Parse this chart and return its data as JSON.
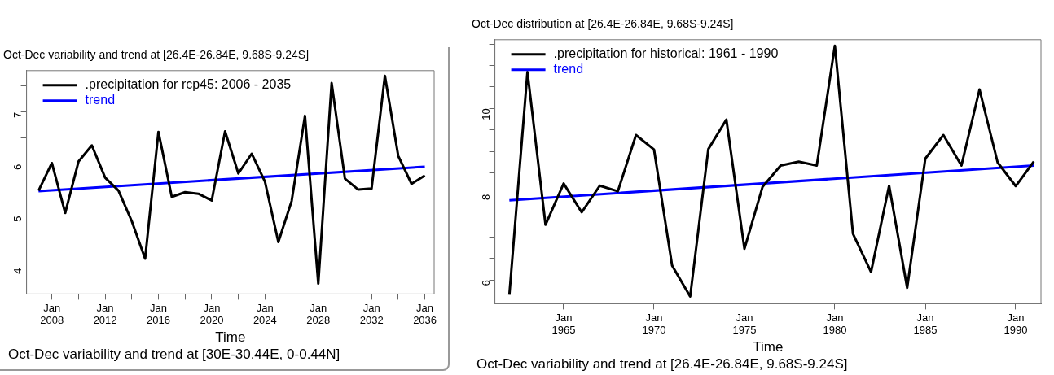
{
  "chart_data": [
    {
      "type": "line",
      "title": "Oct-Dec variability and trend at [26.4E-26.84E, 9.68S-9.24S]",
      "xlabel": "Time",
      "x": [
        "2007-01",
        "2008-01",
        "2009-01",
        "2010-01",
        "2011-01",
        "2012-01",
        "2013-01",
        "2014-01",
        "2015-01",
        "2016-01",
        "2017-01",
        "2018-01",
        "2019-01",
        "2020-01",
        "2021-01",
        "2022-01",
        "2023-01",
        "2024-01",
        "2025-01",
        "2026-01",
        "2027-01",
        "2028-01",
        "2029-01",
        "2030-01",
        "2031-01",
        "2032-01",
        "2033-01",
        "2034-01",
        "2035-01",
        "2036-01"
      ],
      "series": [
        {
          "name": ".precipitation for rcp45: 2006 - 2035",
          "color": "#000000",
          "values": [
            5.49,
            6.02,
            5.06,
            6.05,
            6.36,
            5.74,
            5.49,
            4.9,
            4.18,
            6.62,
            5.37,
            5.46,
            5.43,
            5.3,
            6.63,
            5.82,
            6.2,
            5.66,
            4.5,
            5.29,
            6.93,
            3.7,
            7.56,
            5.72,
            5.51,
            5.53,
            7.7,
            6.16,
            5.62,
            5.78
          ]
        },
        {
          "name": "trend",
          "color": "#0000ff",
          "x": [
            "2007-01",
            "2036-01"
          ],
          "values": [
            5.48,
            5.95
          ]
        }
      ],
      "xlim": [
        "2006-02-06",
        "2036-09-12"
      ],
      "xticks": [
        {
          "value": "2008-01",
          "label": "Jan 2008"
        },
        {
          "value": "2010-01",
          "label": null
        },
        {
          "value": "2012-01",
          "label": "Jan 2012"
        },
        {
          "value": "2014-01",
          "label": null
        },
        {
          "value": "2016-01",
          "label": "Jan 2016"
        },
        {
          "value": "2018-01",
          "label": null
        },
        {
          "value": "2020-01",
          "label": "Jan 2020"
        },
        {
          "value": "2022-01",
          "label": null
        },
        {
          "value": "2024-01",
          "label": "Jan 2024"
        },
        {
          "value": "2026-01",
          "label": null
        },
        {
          "value": "2028-01",
          "label": "Jan 2028"
        },
        {
          "value": "2030-01",
          "label": null
        },
        {
          "value": "2032-01",
          "label": "Jan 2032"
        },
        {
          "value": "2034-01",
          "label": null
        },
        {
          "value": "2036-01",
          "label": "Jan 2036"
        }
      ],
      "ylim": [
        3.5,
        7.8
      ],
      "yticks": [
        4,
        {
          "value": 4.5,
          "label": null
        },
        5,
        {
          "value": 5.5,
          "label": null
        },
        6,
        {
          "value": 6.5,
          "label": null
        },
        7,
        {
          "value": 7.5,
          "label": null
        }
      ],
      "legend": "top left",
      "marker": "none",
      "grid": false,
      "annotations": [
        "Oct-Dec variability and trend at [30E-30.44E, 0-0.44N]"
      ]
    },
    {
      "type": "line",
      "title": "Oct-Dec distribution at [26.4E-26.84E, 9.68S-9.24S]",
      "xlabel": "Time",
      "x": [
        "1962-01",
        "1963-01",
        "1964-01",
        "1965-01",
        "1966-01",
        "1967-01",
        "1968-01",
        "1969-01",
        "1970-01",
        "1971-01",
        "1972-01",
        "1973-01",
        "1974-01",
        "1975-01",
        "1976-01",
        "1977-01",
        "1978-01",
        "1979-01",
        "1980-01",
        "1981-01",
        "1982-01",
        "1983-01",
        "1984-01",
        "1985-01",
        "1986-01",
        "1987-01",
        "1988-01",
        "1989-01",
        "1990-01",
        "1991-01"
      ],
      "series": [
        {
          "name": ".precipitation for historical: 1961 - 1990",
          "color": "#000000",
          "values": [
            5.66,
            10.85,
            7.29,
            8.25,
            7.58,
            8.2,
            8.07,
            9.38,
            9.04,
            6.34,
            5.62,
            9.05,
            9.74,
            6.73,
            8.17,
            8.67,
            8.76,
            8.67,
            11.46,
            7.08,
            6.19,
            8.2,
            5.82,
            8.83,
            9.38,
            8.67,
            10.44,
            8.74,
            8.19,
            8.76
          ]
        },
        {
          "name": "trend",
          "color": "#0000ff",
          "x": [
            "1962-01",
            "1991-01"
          ],
          "values": [
            7.86,
            8.67
          ]
        }
      ],
      "xlim": [
        "1961-03-15",
        "1991-05-26"
      ],
      "xticks": [
        {
          "value": "1965-01",
          "label": "Jan 1965"
        },
        {
          "value": "1970-01",
          "label": "Jan 1970"
        },
        {
          "value": "1975-01",
          "label": "Jan 1975"
        },
        {
          "value": "1980-01",
          "label": "Jan 1980"
        },
        {
          "value": "1985-01",
          "label": "Jan 1985"
        },
        {
          "value": "1990-01",
          "label": "Jan 1990"
        }
      ],
      "ylim": [
        5.45,
        11.6
      ],
      "yticks": [
        6,
        {
          "value": 6.5,
          "label": null
        },
        {
          "value": 7,
          "label": null
        },
        {
          "value": 7.5,
          "label": null
        },
        8,
        {
          "value": 8.5,
          "label": null
        },
        {
          "value": 9,
          "label": null
        },
        {
          "value": 9.5,
          "label": null
        },
        10,
        {
          "value": 10.5,
          "label": null
        },
        {
          "value": 11,
          "label": null
        },
        {
          "value": 11.5,
          "label": null
        }
      ],
      "legend": "top left",
      "marker": "none",
      "grid": false,
      "annotations": [
        "Oct-Dec variability and trend at [26.4E-26.84E, 9.68S-9.24S]"
      ]
    }
  ]
}
